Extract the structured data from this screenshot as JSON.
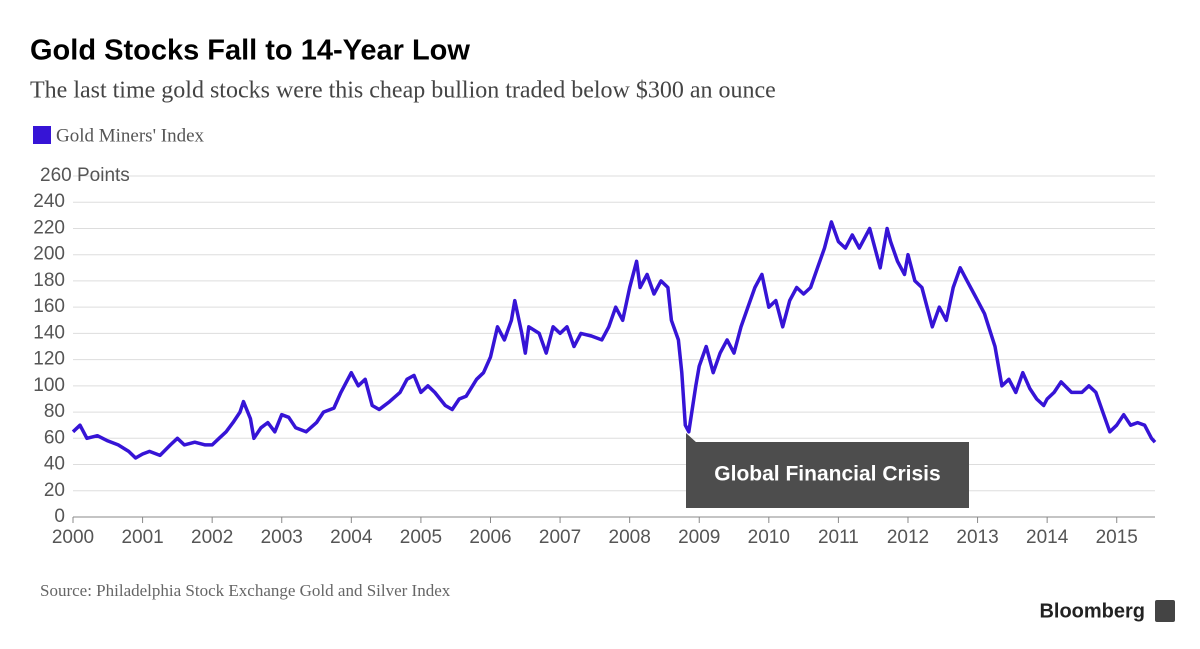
{
  "chart_data": {
    "type": "line",
    "title": "Gold Stocks Fall to 14-Year Low",
    "subtitle": "The last time gold stocks were this cheap bullion traded below $300 an ounce",
    "source": "Source: Philadelphia Stock Exchange Gold and Silver Index",
    "brand": "Bloomberg",
    "annotation": "Global Financial Crisis",
    "xlim": [
      2000,
      2015.55
    ],
    "xticks": [
      2000,
      2001,
      2002,
      2003,
      2004,
      2005,
      2006,
      2007,
      2008,
      2009,
      2010,
      2011,
      2012,
      2013,
      2014,
      2015
    ],
    "ylim": [
      0,
      260
    ],
    "yticks": [
      0,
      20,
      40,
      60,
      80,
      100,
      120,
      140,
      160,
      180,
      200,
      220,
      240,
      {
        "value": 260,
        "label": "260 Points"
      }
    ],
    "grid": true,
    "x": [
      2000.0,
      2000.1,
      2000.2,
      2000.35,
      2000.5,
      2000.65,
      2000.8,
      2000.9,
      2001.0,
      2001.1,
      2001.25,
      2001.4,
      2001.5,
      2001.6,
      2001.75,
      2001.9,
      2002.0,
      2002.1,
      2002.2,
      2002.3,
      2002.4,
      2002.45,
      2002.55,
      2002.6,
      2002.7,
      2002.8,
      2002.9,
      2003.0,
      2003.1,
      2003.2,
      2003.35,
      2003.5,
      2003.6,
      2003.75,
      2003.85,
      2004.0,
      2004.1,
      2004.2,
      2004.3,
      2004.4,
      2004.55,
      2004.7,
      2004.8,
      2004.9,
      2005.0,
      2005.1,
      2005.2,
      2005.35,
      2005.45,
      2005.55,
      2005.65,
      2005.8,
      2005.9,
      2006.0,
      2006.1,
      2006.2,
      2006.3,
      2006.35,
      2006.45,
      2006.5,
      2006.55,
      2006.7,
      2006.8,
      2006.9,
      2007.0,
      2007.1,
      2007.2,
      2007.3,
      2007.45,
      2007.6,
      2007.7,
      2007.8,
      2007.9,
      2008.0,
      2008.1,
      2008.15,
      2008.25,
      2008.35,
      2008.45,
      2008.55,
      2008.6,
      2008.7,
      2008.75,
      2008.8,
      2008.85,
      2008.95,
      2009.0,
      2009.1,
      2009.2,
      2009.3,
      2009.4,
      2009.5,
      2009.6,
      2009.7,
      2009.8,
      2009.9,
      2010.0,
      2010.1,
      2010.2,
      2010.3,
      2010.4,
      2010.5,
      2010.6,
      2010.7,
      2010.8,
      2010.9,
      2011.0,
      2011.1,
      2011.2,
      2011.3,
      2011.45,
      2011.55,
      2011.6,
      2011.7,
      2011.75,
      2011.85,
      2011.95,
      2012.0,
      2012.1,
      2012.2,
      2012.35,
      2012.45,
      2012.55,
      2012.65,
      2012.75,
      2012.85,
      2012.95,
      2013.0,
      2013.1,
      2013.25,
      2013.35,
      2013.45,
      2013.55,
      2013.65,
      2013.75,
      2013.85,
      2013.95,
      2014.0,
      2014.1,
      2014.2,
      2014.35,
      2014.5,
      2014.6,
      2014.7,
      2014.8,
      2014.9,
      2015.0,
      2015.1,
      2015.2,
      2015.3,
      2015.4,
      2015.5,
      2015.55
    ],
    "series": [
      {
        "name": "Gold Miners' Index",
        "color": "#3614d6",
        "values": [
          65,
          70,
          60,
          62,
          58,
          55,
          50,
          45,
          48,
          50,
          47,
          55,
          60,
          55,
          57,
          55,
          55,
          60,
          65,
          72,
          80,
          88,
          75,
          60,
          68,
          72,
          65,
          78,
          76,
          68,
          65,
          72,
          80,
          83,
          95,
          110,
          100,
          105,
          85,
          82,
          88,
          95,
          105,
          108,
          95,
          100,
          95,
          85,
          82,
          90,
          92,
          105,
          110,
          122,
          145,
          135,
          150,
          165,
          140,
          125,
          145,
          140,
          125,
          145,
          140,
          145,
          130,
          140,
          138,
          135,
          145,
          160,
          150,
          175,
          195,
          175,
          185,
          170,
          180,
          175,
          150,
          135,
          110,
          70,
          65,
          100,
          115,
          130,
          110,
          125,
          135,
          125,
          145,
          160,
          175,
          185,
          160,
          165,
          145,
          165,
          175,
          170,
          175,
          190,
          205,
          225,
          210,
          205,
          215,
          205,
          220,
          200,
          190,
          220,
          210,
          195,
          185,
          200,
          180,
          175,
          145,
          160,
          150,
          175,
          190,
          180,
          170,
          165,
          155,
          130,
          100,
          105,
          95,
          110,
          98,
          90,
          85,
          90,
          95,
          103,
          95,
          95,
          100,
          95,
          80,
          65,
          70,
          78,
          70,
          72,
          70,
          60,
          57
        ]
      }
    ]
  }
}
